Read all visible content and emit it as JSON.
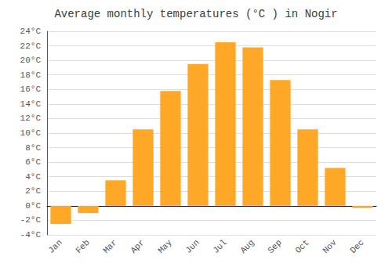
{
  "chart_data": {
    "type": "bar",
    "title": "Average monthly temperatures (°C ) in Nogir",
    "categories": [
      "Jan",
      "Feb",
      "Mar",
      "Apr",
      "May",
      "Jun",
      "Jul",
      "Aug",
      "Sep",
      "Oct",
      "Nov",
      "Dec"
    ],
    "values": [
      -2.5,
      -1.0,
      3.5,
      10.5,
      15.8,
      19.5,
      22.5,
      21.8,
      17.3,
      10.5,
      5.2,
      -0.3
    ],
    "color": "#FFA726",
    "ylim": [
      -4,
      24
    ],
    "yticks": [
      {
        "value": -4,
        "label": "-4°C"
      },
      {
        "value": -2,
        "label": "-2°C"
      },
      {
        "value": 0,
        "label": "0°C"
      },
      {
        "value": 2,
        "label": "2°C"
      },
      {
        "value": 4,
        "label": "4°C"
      },
      {
        "value": 6,
        "label": "6°C"
      },
      {
        "value": 8,
        "label": "8°C"
      },
      {
        "value": 10,
        "label": "10°C"
      },
      {
        "value": 12,
        "label": "12°C"
      },
      {
        "value": 14,
        "label": "14°C"
      },
      {
        "value": 16,
        "label": "16°C"
      },
      {
        "value": 18,
        "label": "18°C"
      },
      {
        "value": 20,
        "label": "20°C"
      },
      {
        "value": 22,
        "label": "22°C"
      },
      {
        "value": 24,
        "label": "24°C"
      }
    ],
    "grid": true
  }
}
